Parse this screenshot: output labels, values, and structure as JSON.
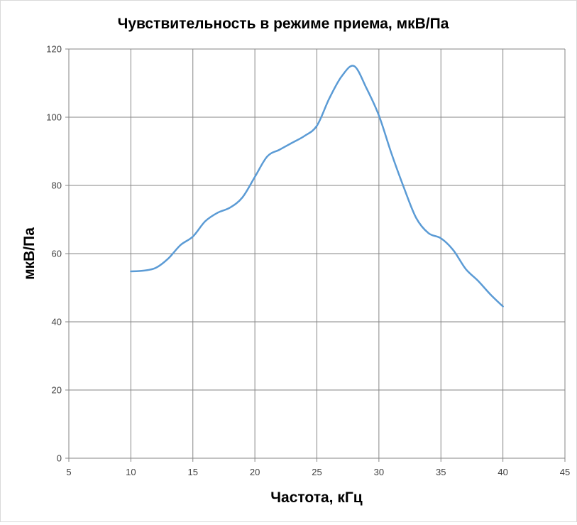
{
  "chart_data": {
    "type": "line",
    "title": "Чувствительность в режиме приема, мкВ/Па",
    "xlabel": "Частота, кГц",
    "ylabel": "мкВ/Па",
    "xlim": [
      5,
      45
    ],
    "ylim": [
      0,
      120
    ],
    "xticks": [
      5,
      10,
      15,
      20,
      25,
      30,
      35,
      40,
      45
    ],
    "yticks": [
      0,
      20,
      40,
      60,
      80,
      100,
      120
    ],
    "grid": true,
    "legend": "none",
    "series": [
      {
        "color": "#5b9bd5",
        "x": [
          10,
          11,
          12,
          13,
          14,
          15,
          16,
          17,
          18,
          19,
          20,
          21,
          22,
          23,
          24,
          25,
          26,
          27,
          28,
          29,
          30,
          31,
          32,
          33,
          34,
          35,
          36,
          37,
          38,
          39,
          40
        ],
        "y": [
          54.8,
          55.0,
          55.8,
          58.5,
          62.5,
          65.0,
          69.5,
          72.0,
          73.5,
          76.5,
          82.5,
          88.5,
          90.5,
          92.5,
          94.5,
          97.5,
          105.5,
          112.0,
          115.0,
          108.5,
          100.5,
          89.5,
          79.5,
          70.5,
          66.0,
          64.5,
          61.0,
          55.5,
          52.0,
          48.0,
          44.5
        ]
      }
    ]
  }
}
